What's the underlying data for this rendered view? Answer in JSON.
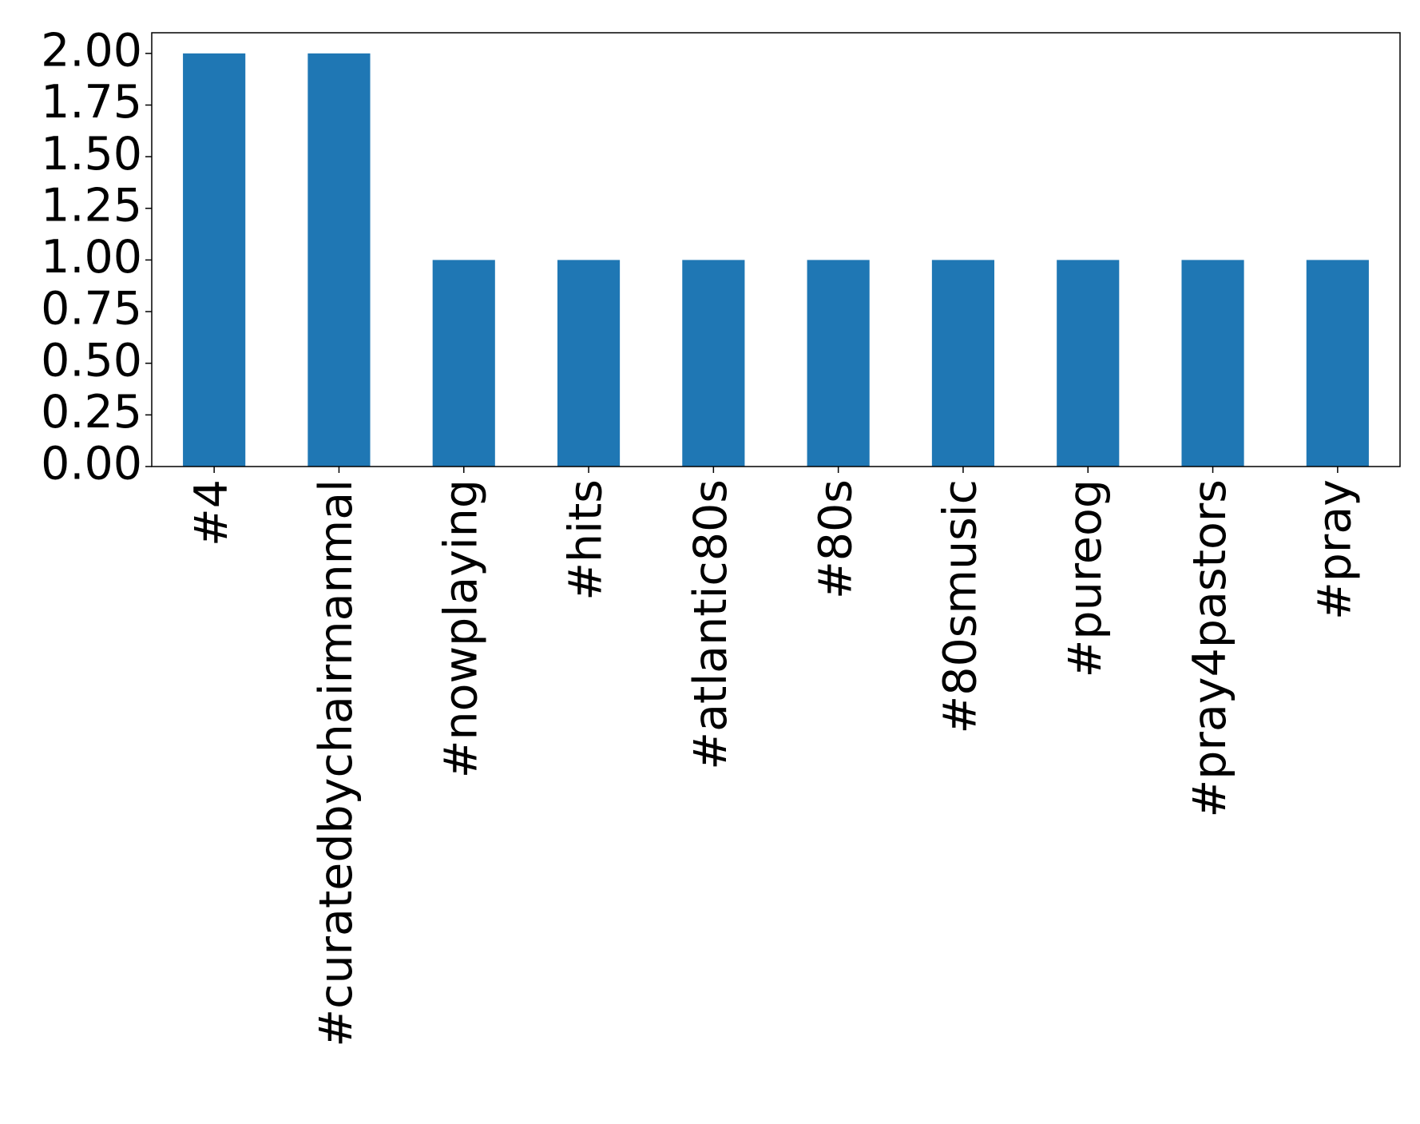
{
  "chart_data": {
    "type": "bar",
    "categories": [
      "#4",
      "#curatedbychairmanmal",
      "#nowplaying",
      "#hits",
      "#atlantic80s",
      "#80s",
      "#80smusic",
      "#pureog",
      "#pray4pastors",
      "#pray"
    ],
    "values": [
      2,
      2,
      1,
      1,
      1,
      1,
      1,
      1,
      1,
      1
    ],
    "color": "#1f77b4",
    "ylim": [
      0,
      2.1
    ],
    "yticks": [
      {
        "value": 0,
        "label": "0.00"
      },
      {
        "value": 0.25,
        "label": "0.25"
      },
      {
        "value": 0.5,
        "label": "0.50"
      },
      {
        "value": 0.75,
        "label": "0.75"
      },
      {
        "value": 1,
        "label": "1.00"
      },
      {
        "value": 1.25,
        "label": "1.25"
      },
      {
        "value": 1.5,
        "label": "1.50"
      },
      {
        "value": 1.75,
        "label": "1.75"
      },
      {
        "value": 2,
        "label": "2.00"
      }
    ],
    "grid": false
  }
}
